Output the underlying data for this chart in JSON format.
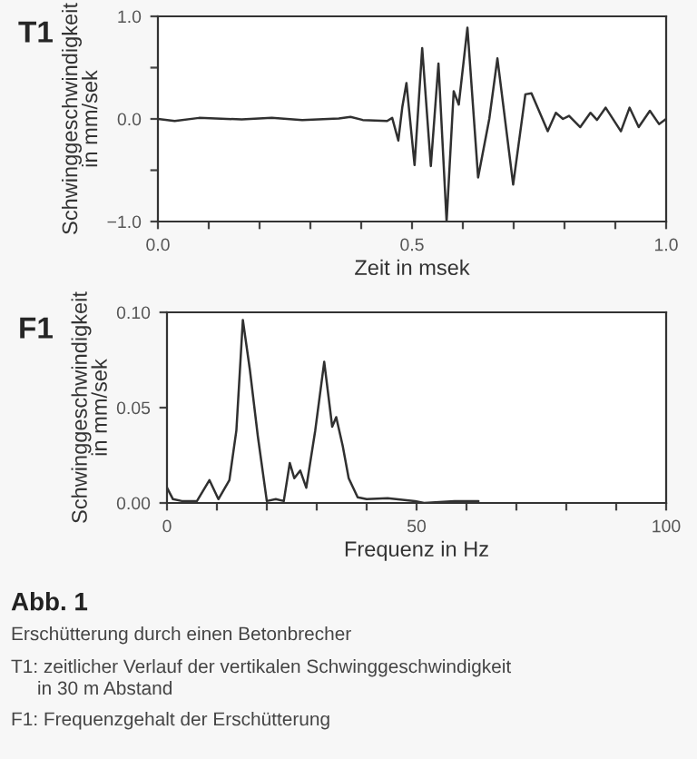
{
  "chart_data": [
    {
      "type": "line",
      "title": "T1",
      "xlabel": "Zeit in msek",
      "ylabel": "Schwinggeschwindigkeit\nin mm/sek",
      "color": "#303030",
      "marker": "none",
      "line_style": "solid",
      "grid": false,
      "legend": false,
      "x": [
        0,
        0.033,
        0.081,
        0.165,
        0.224,
        0.284,
        0.356,
        0.379,
        0.403,
        0.451,
        0.461,
        0.473,
        0.481,
        0.489,
        0.505,
        0.52,
        0.537,
        0.552,
        0.568,
        0.582,
        0.592,
        0.609,
        0.63,
        0.652,
        0.668,
        0.699,
        0.723,
        0.735,
        0.767,
        0.783,
        0.797,
        0.809,
        0.831,
        0.851,
        0.864,
        0.881,
        0.911,
        0.928,
        0.946,
        0.968,
        0.986,
        1.0
      ],
      "values": [
        0,
        -0.02,
        0.01,
        -0.005,
        0.01,
        -0.01,
        0.005,
        0.02,
        -0.01,
        -0.02,
        0.01,
        -0.21,
        0.12,
        0.35,
        -0.45,
        0.69,
        -0.46,
        0.54,
        -1.0,
        0.27,
        0.14,
        0.89,
        -0.57,
        0.0,
        0.59,
        -0.64,
        0.24,
        0.25,
        -0.12,
        0.06,
        0.0,
        0.03,
        -0.08,
        0.06,
        -0.01,
        0.11,
        -0.12,
        0.11,
        -0.08,
        0.08,
        -0.05,
        0.0
      ],
      "xlim": [
        0,
        1
      ],
      "xticks": [
        {
          "value": 0,
          "label": "0.0"
        },
        {
          "value": 0.1,
          "label": null
        },
        {
          "value": 0.2,
          "label": null
        },
        {
          "value": 0.3,
          "label": null
        },
        {
          "value": 0.4,
          "label": null
        },
        {
          "value": 0.5,
          "label": "0.5"
        },
        {
          "value": 0.6,
          "label": null
        },
        {
          "value": 0.7,
          "label": null
        },
        {
          "value": 0.8,
          "label": null
        },
        {
          "value": 0.9,
          "label": null
        },
        {
          "value": 1,
          "label": "1.0"
        }
      ],
      "ylim": [
        -1,
        1
      ],
      "yticks": [
        {
          "value": -1,
          "label": "−1.0"
        },
        {
          "value": -0.5,
          "label": null
        },
        {
          "value": 0,
          "label": "0.0"
        },
        {
          "value": 0.5,
          "label": null
        },
        {
          "value": 1,
          "label": "1.0"
        }
      ]
    },
    {
      "type": "line",
      "title": "F1",
      "xlabel": "Frequenz in Hz",
      "ylabel": "Schwinggeschwindigkeit\nin mm/sek",
      "color": "#303030",
      "marker": "none",
      "line_style": "solid",
      "grid": false,
      "legend": false,
      "x": [
        0,
        1.2,
        3,
        6,
        8.5,
        10.3,
        12.5,
        13.9,
        15.2,
        16.6,
        18.2,
        20,
        21.8,
        23.4,
        24.6,
        25.5,
        26.7,
        27.9,
        29.7,
        31.5,
        33.1,
        33.9,
        35.2,
        36.4,
        38.2,
        40,
        44.2,
        49.7,
        51.5,
        57.6,
        60.6,
        62.4
      ],
      "values": [
        0.008,
        0.002,
        0.001,
        0.001,
        0.012,
        0.002,
        0.012,
        0.038,
        0.096,
        0.07,
        0.035,
        0.001,
        0.002,
        0.001,
        0.021,
        0.013,
        0.017,
        0.008,
        0.038,
        0.074,
        0.04,
        0.045,
        0.03,
        0.013,
        0.003,
        0.002,
        0.0025,
        0.001,
        0,
        0.001,
        0.001,
        0.001
      ],
      "xlim": [
        0,
        100
      ],
      "xticks": [
        {
          "value": 0,
          "label": "0"
        },
        {
          "value": 10,
          "label": null
        },
        {
          "value": 20,
          "label": null
        },
        {
          "value": 30,
          "label": null
        },
        {
          "value": 40,
          "label": null
        },
        {
          "value": 50,
          "label": "50"
        },
        {
          "value": 60,
          "label": null
        },
        {
          "value": 70,
          "label": null
        },
        {
          "value": 80,
          "label": null
        },
        {
          "value": 90,
          "label": null
        },
        {
          "value": 100,
          "label": "100"
        }
      ],
      "ylim": [
        0,
        0.1
      ],
      "yticks": [
        {
          "value": 0,
          "label": "0.00"
        },
        {
          "value": 0.05,
          "label": "0.05"
        },
        {
          "value": 0.1,
          "label": "0.10"
        }
      ],
      "annotations": [
        "Abb. 1",
        "Erschütterung durch einen Betonbrecher",
        "T1: zeitlicher Verlauf der vertikalen Schwinggeschwindigkeit\n     in 30 m Abstand",
        "F1: Frequenzgehalt der Erschütterung"
      ]
    }
  ]
}
